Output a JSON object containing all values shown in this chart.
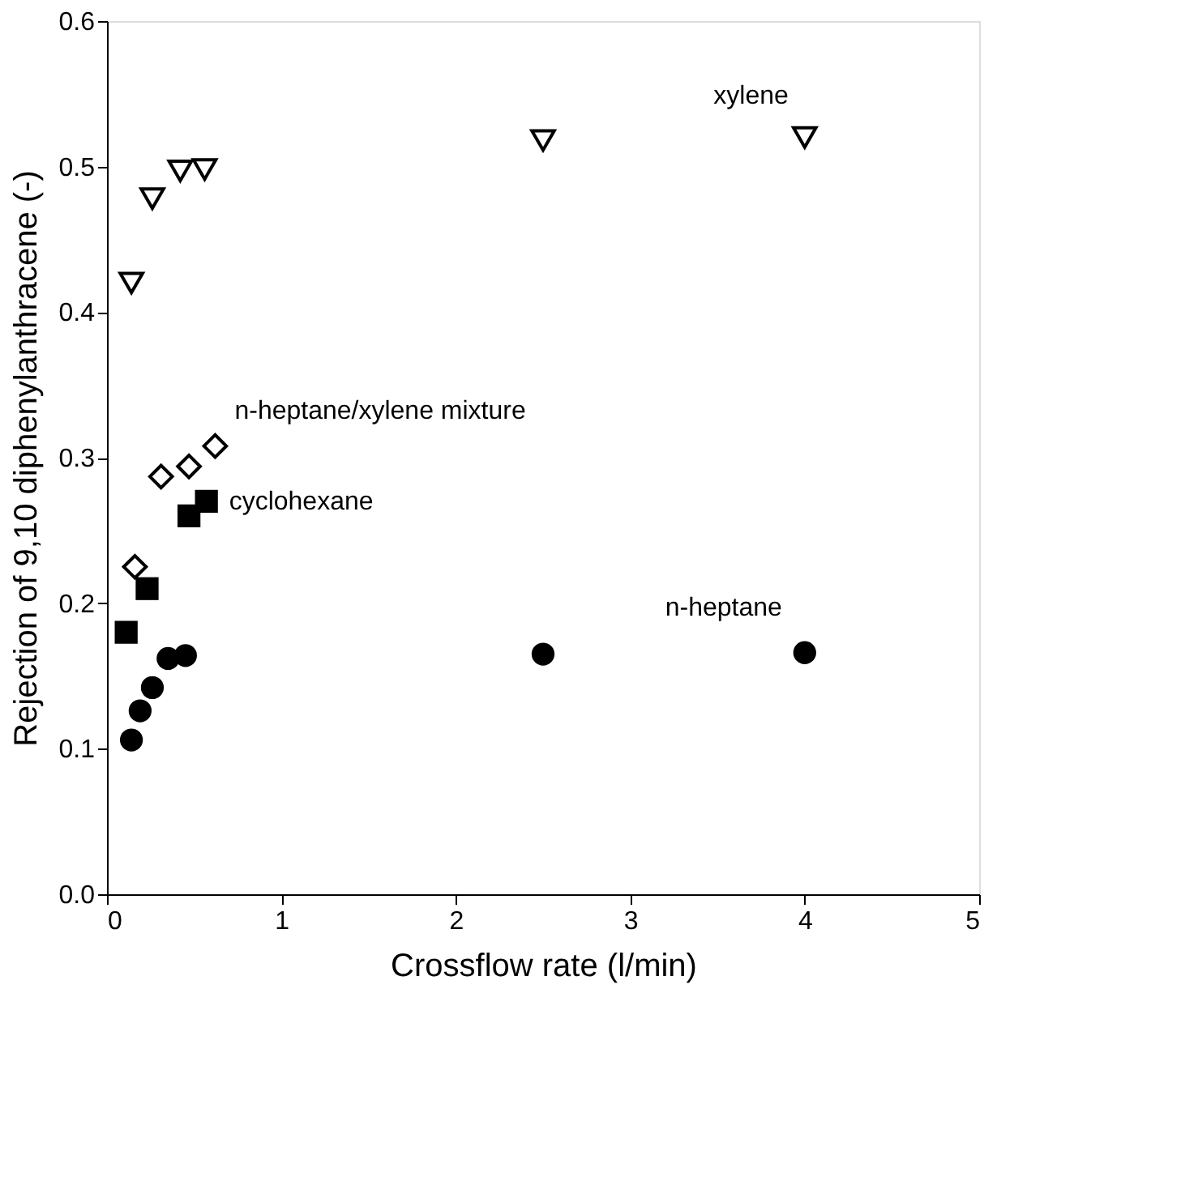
{
  "chart_data": {
    "type": "scatter",
    "xlabel": "Crossflow rate (l/min)",
    "ylabel": "Rejection of 9,10 diphenylanthracene (-)",
    "xlim": [
      0,
      5
    ],
    "xticks": [
      0,
      1,
      2,
      3,
      4,
      5
    ],
    "ylim": [
      0,
      0.6
    ],
    "yticks": [
      {
        "value": 0,
        "label": "0.0"
      },
      0.1,
      0.2,
      0.3,
      0.4,
      0.5,
      0.6
    ],
    "grid": false,
    "series": [
      {
        "name": "xylene",
        "color": "#000000",
        "marker": "triangle",
        "x": [
          0.14,
          0.26,
          0.42,
          0.56,
          2.5,
          4.0
        ],
        "values": [
          0.42,
          0.478,
          0.497,
          0.498,
          0.518,
          0.52
        ]
      },
      {
        "name": "n-heptane/xylene mixture",
        "color": "#000000",
        "marker": "diamond",
        "x": [
          0.16,
          0.31,
          0.47,
          0.62
        ],
        "values": [
          0.225,
          0.287,
          0.294,
          0.308
        ]
      },
      {
        "name": "cyclohexane",
        "color": "#000000",
        "marker": "square",
        "x": [
          0.11,
          0.23,
          0.47,
          0.57
        ],
        "values": [
          0.18,
          0.21,
          0.26,
          0.27
        ]
      },
      {
        "name": "n-heptane",
        "color": "#000000",
        "marker": "circle",
        "x": [
          0.14,
          0.19,
          0.26,
          0.35,
          0.45,
          2.5,
          4.0
        ],
        "values": [
          0.106,
          0.126,
          0.142,
          0.162,
          0.164,
          0.165,
          0.166
        ]
      }
    ]
  }
}
